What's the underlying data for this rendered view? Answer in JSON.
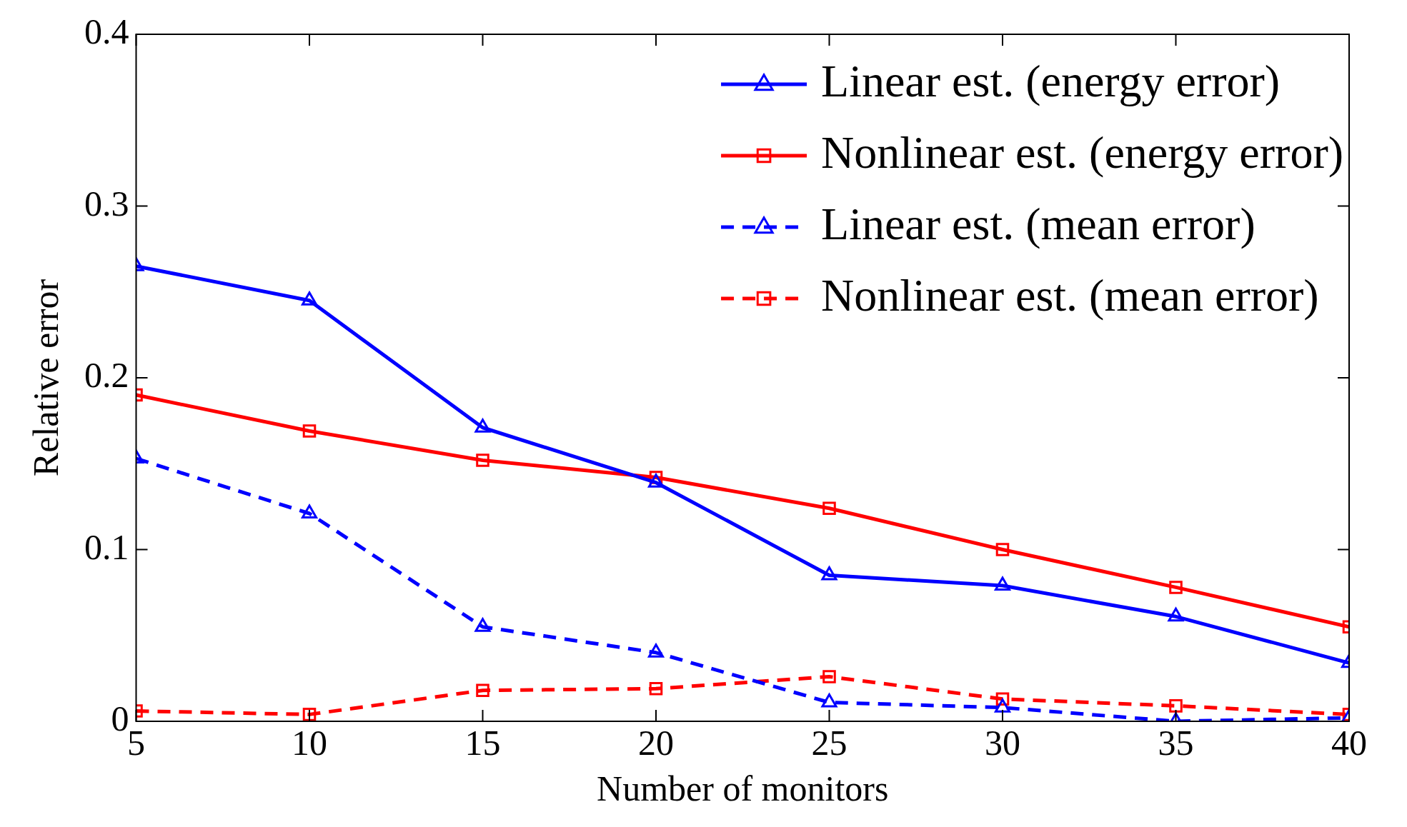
{
  "chart_data": {
    "type": "line",
    "xlabel": "Number of monitors",
    "ylabel": "Relative error",
    "x": [
      5,
      10,
      15,
      20,
      25,
      30,
      35,
      40
    ],
    "xlim": [
      5,
      40
    ],
    "xticks": [
      5,
      10,
      15,
      20,
      25,
      30,
      35,
      40
    ],
    "ylim": [
      0,
      0.4
    ],
    "yticks": [
      0,
      0.1,
      0.2,
      0.3,
      0.4
    ],
    "grid": false,
    "legend": "top right",
    "series": [
      {
        "name": "Linear est. (energy error)",
        "color": "#0000ff",
        "marker": "triangle",
        "line_style": "solid",
        "values": [
          0.265,
          0.245,
          0.171,
          0.139,
          0.085,
          0.079,
          0.061,
          0.034
        ]
      },
      {
        "name": "Nonlinear est. (energy error)",
        "color": "#ff0000",
        "marker": "square",
        "line_style": "solid",
        "values": [
          0.19,
          0.169,
          0.152,
          0.142,
          0.124,
          0.1,
          0.078,
          0.055
        ]
      },
      {
        "name": "Linear est. (mean error)",
        "color": "#0000ff",
        "marker": "triangle",
        "line_style": "dashed",
        "values": [
          0.153,
          0.121,
          0.055,
          0.04,
          0.011,
          0.008,
          0.0,
          0.002
        ]
      },
      {
        "name": "Nonlinear est. (mean error)",
        "color": "#ff0000",
        "marker": "square",
        "line_style": "dashed",
        "values": [
          0.006,
          0.004,
          0.018,
          0.019,
          0.026,
          0.013,
          0.009,
          0.004
        ]
      }
    ]
  }
}
